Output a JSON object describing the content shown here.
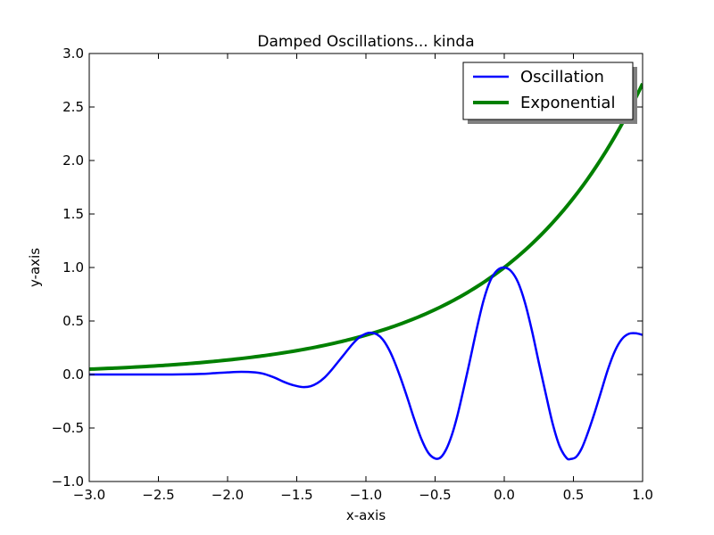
{
  "chart_data": {
    "type": "line",
    "title": "Damped Oscillations... kinda",
    "xlabel": "x-axis",
    "ylabel": "y-axis",
    "xlim": [
      -3.0,
      1.0
    ],
    "ylim": [
      -1.0,
      3.0
    ],
    "xticks": [
      -3.0,
      -2.5,
      -2.0,
      -1.5,
      -1.0,
      -0.5,
      0.0,
      0.5,
      1.0
    ],
    "xtick_labels": [
      "−3.0",
      "−2.5",
      "−2.0",
      "−1.5",
      "−1.0",
      "−0.5",
      "0.0",
      "0.5",
      "1.0"
    ],
    "yticks": [
      -1.0,
      -0.5,
      0.0,
      0.5,
      1.0,
      1.5,
      2.0,
      2.5,
      3.0
    ],
    "ytick_labels": [
      "−1.0",
      "−0.5",
      "0.0",
      "0.5",
      "1.0",
      "1.5",
      "2.0",
      "2.5",
      "3.0"
    ],
    "grid": false,
    "legend_position": "top-right",
    "series": [
      {
        "name": "Oscillation",
        "color": "#0000ff",
        "points": [
          [
            -3.0,
            0.0
          ],
          [
            -2.8,
            0.0
          ],
          [
            -2.6,
            0.0
          ],
          [
            -2.4,
            0.0
          ],
          [
            -2.2,
            0.005
          ],
          [
            -2.1,
            0.012
          ],
          [
            -2.0,
            0.02
          ],
          [
            -1.9,
            0.025
          ],
          [
            -1.8,
            0.02
          ],
          [
            -1.75,
            0.01
          ],
          [
            -1.7,
            -0.01
          ],
          [
            -1.65,
            -0.035
          ],
          [
            -1.6,
            -0.065
          ],
          [
            -1.55,
            -0.09
          ],
          [
            -1.5,
            -0.108
          ],
          [
            -1.45,
            -0.118
          ],
          [
            -1.4,
            -0.11
          ],
          [
            -1.35,
            -0.08
          ],
          [
            -1.3,
            -0.03
          ],
          [
            -1.25,
            0.04
          ],
          [
            -1.2,
            0.12
          ],
          [
            -1.15,
            0.2
          ],
          [
            -1.1,
            0.28
          ],
          [
            -1.05,
            0.345
          ],
          [
            -1.0,
            0.382
          ],
          [
            -0.96,
            0.39
          ],
          [
            -0.92,
            0.375
          ],
          [
            -0.88,
            0.33
          ],
          [
            -0.84,
            0.25
          ],
          [
            -0.8,
            0.14
          ],
          [
            -0.75,
            -0.03
          ],
          [
            -0.7,
            -0.22
          ],
          [
            -0.65,
            -0.42
          ],
          [
            -0.6,
            -0.6
          ],
          [
            -0.55,
            -0.73
          ],
          [
            -0.5,
            -0.785
          ],
          [
            -0.46,
            -0.775
          ],
          [
            -0.42,
            -0.7
          ],
          [
            -0.38,
            -0.57
          ],
          [
            -0.34,
            -0.39
          ],
          [
            -0.3,
            -0.17
          ],
          [
            -0.25,
            0.12
          ],
          [
            -0.2,
            0.42
          ],
          [
            -0.15,
            0.69
          ],
          [
            -0.1,
            0.88
          ],
          [
            -0.05,
            0.975
          ],
          [
            0.0,
            1.0
          ],
          [
            0.05,
            0.965
          ],
          [
            0.1,
            0.86
          ],
          [
            0.15,
            0.67
          ],
          [
            0.2,
            0.41
          ],
          [
            0.25,
            0.11
          ],
          [
            0.3,
            -0.18
          ],
          [
            0.35,
            -0.46
          ],
          [
            0.4,
            -0.67
          ],
          [
            0.45,
            -0.78
          ],
          [
            0.48,
            -0.79
          ],
          [
            0.52,
            -0.77
          ],
          [
            0.56,
            -0.69
          ],
          [
            0.6,
            -0.56
          ],
          [
            0.65,
            -0.37
          ],
          [
            0.7,
            -0.16
          ],
          [
            0.75,
            0.05
          ],
          [
            0.8,
            0.22
          ],
          [
            0.85,
            0.33
          ],
          [
            0.9,
            0.38
          ],
          [
            0.95,
            0.385
          ],
          [
            1.0,
            0.37
          ]
        ]
      },
      {
        "name": "Exponential",
        "color": "#008000",
        "function": "exp",
        "x_samples": 121
      }
    ]
  }
}
